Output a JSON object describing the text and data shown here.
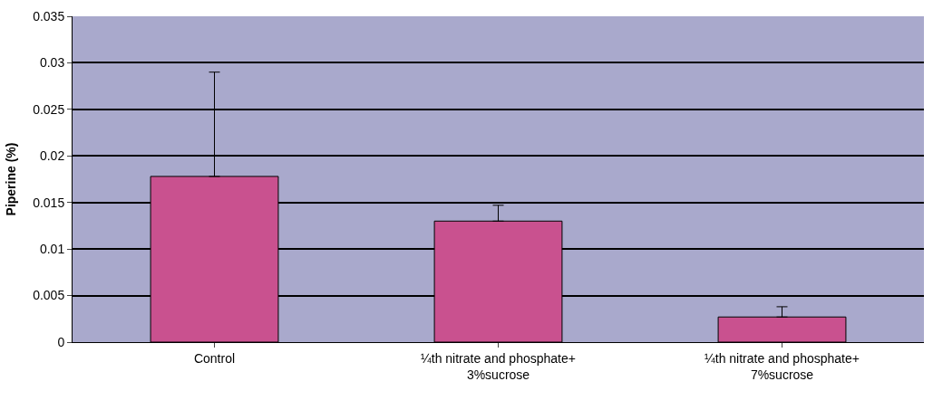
{
  "chart_data": {
    "type": "bar",
    "ylabel": "Piperine (%)",
    "categories": [
      "Control",
      "¼th nitrate and phosphate+\n3%sucrose",
      "¼th nitrate and phosphate+\n7%sucrose"
    ],
    "values": [
      0.0178,
      0.013,
      0.0027
    ],
    "errors": [
      [
        0.0178,
        0.029
      ],
      [
        0.013,
        0.0147
      ],
      [
        0.0027,
        0.0038
      ]
    ],
    "color": "#c9518f",
    "ylim": [
      0,
      0.035
    ],
    "yticks": [
      0,
      0.005,
      0.01,
      0.015,
      0.02,
      0.025,
      0.03,
      0.035
    ],
    "grid": "y"
  }
}
